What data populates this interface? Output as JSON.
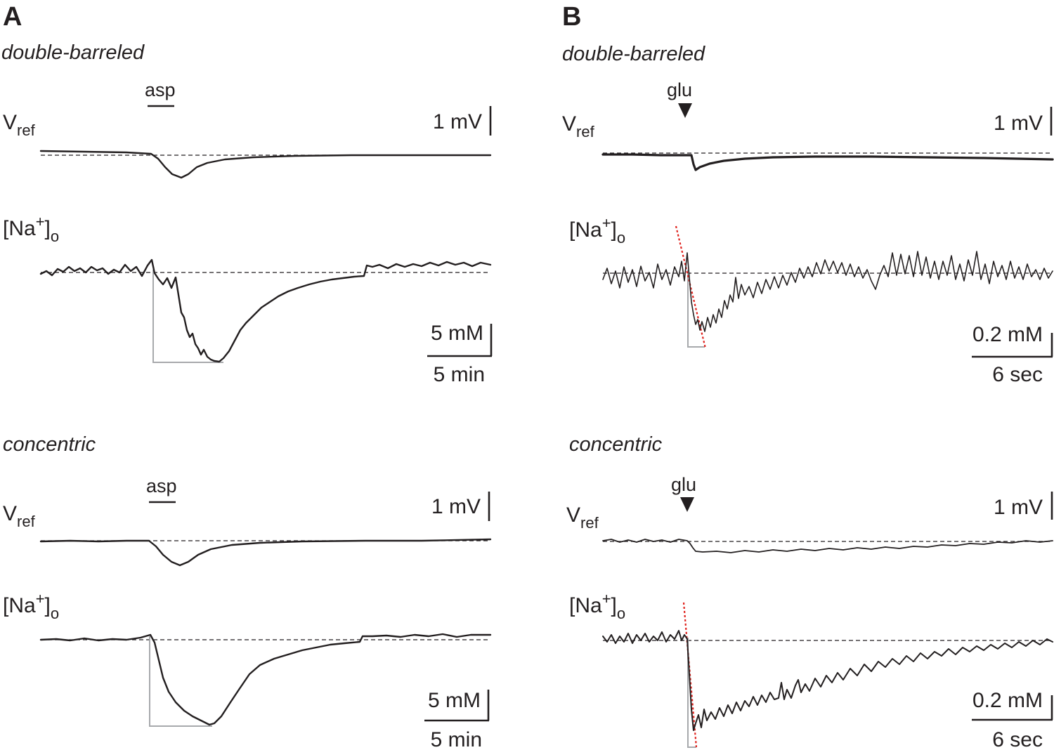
{
  "panels": {
    "A": {
      "letter": "A",
      "top": {
        "condition": "double-barreled",
        "stimulus": "asp",
        "vref": {
          "label_main": "V",
          "label_sub": "ref",
          "scale_label": "1 mV"
        },
        "na": {
          "label_open": "[Na",
          "label_sup": "+",
          "label_close": "]",
          "label_sub": "o",
          "scale_y_label": "5 mM",
          "scale_x_label": "5 min"
        }
      },
      "bottom": {
        "condition": "concentric",
        "stimulus": "asp",
        "vref": {
          "label_main": "V",
          "label_sub": "ref",
          "scale_label": "1 mV"
        },
        "na": {
          "label_open": "[Na",
          "label_sup": "+",
          "label_close": "]",
          "label_sub": "o",
          "scale_y_label": "5 mM",
          "scale_x_label": "5 min"
        }
      }
    },
    "B": {
      "letter": "B",
      "top": {
        "condition": "double-barreled",
        "stimulus": "glu",
        "vref": {
          "label_main": "V",
          "label_sub": "ref",
          "scale_label": "1 mV"
        },
        "na": {
          "label_open": "[Na",
          "label_sup": "+",
          "label_close": "]",
          "label_sub": "o",
          "scale_y_label": "0.2 mM",
          "scale_x_label": "6 sec"
        }
      },
      "bottom": {
        "condition": "concentric",
        "stimulus": "glu",
        "vref": {
          "label_main": "V",
          "label_sub": "ref",
          "scale_label": "1 mV"
        },
        "na": {
          "label_open": "[Na",
          "label_sup": "+",
          "label_close": "]",
          "label_sub": "o",
          "scale_y_label": "0.2 mM",
          "scale_x_label": "6 sec"
        }
      }
    }
  },
  "colors": {
    "trace": "#231f20",
    "guide": "#a7a9ac",
    "fit": "#e0201b"
  }
}
